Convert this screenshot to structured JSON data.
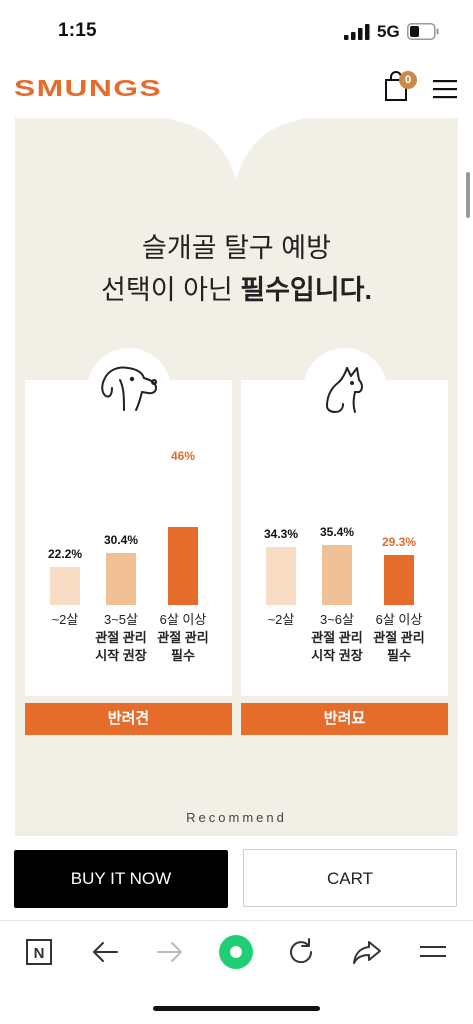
{
  "status_bar": {
    "time": "1:15",
    "network": "5G"
  },
  "header": {
    "brand": "SMUNGS",
    "cart_count": "0"
  },
  "content": {
    "headline_line1": "슬개골 탈구 예방",
    "headline_line2_plain": "선택이 아닌 ",
    "headline_line2_bold": "필수입니다.",
    "recommend_label": "Recommend",
    "dog": {
      "label": "반려견",
      "bars": [
        {
          "value": "22.2%",
          "axis_line1": "~2살",
          "axis_line2": "",
          "axis_line3": ""
        },
        {
          "value": "30.4%",
          "axis_line1": "3~5살",
          "axis_line2": "관절 관리",
          "axis_line3": "시작 권장"
        },
        {
          "value": "46%",
          "axis_line1": "6살 이상",
          "axis_line2": "관절 관리",
          "axis_line3": "필수"
        }
      ]
    },
    "cat": {
      "label": "반려묘",
      "bars": [
        {
          "value": "34.3%",
          "axis_line1": "~2살",
          "axis_line2": "",
          "axis_line3": ""
        },
        {
          "value": "35.4%",
          "axis_line1": "3~6살",
          "axis_line2": "관절 관리",
          "axis_line3": "시작 권장"
        },
        {
          "value": "29.3%",
          "axis_line1": "6살 이상",
          "axis_line2": "관절 관리",
          "axis_line3": "필수"
        }
      ]
    }
  },
  "chart_data": [
    {
      "type": "bar",
      "categories": [
        "~2살",
        "3~5살",
        "6살 이상"
      ],
      "values": [
        22.2,
        30.4,
        46
      ]
    },
    {
      "type": "bar",
      "categories": [
        "~2살",
        "3~6살",
        "6살 이상"
      ],
      "values": [
        34.3,
        35.4,
        29.3
      ]
    }
  ],
  "actions": {
    "buy_now": "BUY IT NOW",
    "cart": "CART"
  },
  "colors": {
    "accent_orange": "#e56c2a",
    "light_peach": "#f8dcc4",
    "mid_peach": "#f0c195",
    "panel_beige": "#f2efe6",
    "badge": "#c98a4a",
    "browser_green": "#1fce74"
  },
  "icons": [
    "cart-icon",
    "menu-icon",
    "dog-icon",
    "cat-icon",
    "n-icon",
    "back-arrow-icon",
    "forward-arrow-icon",
    "home-circle-icon",
    "reload-icon",
    "share-icon",
    "more-menu-icon"
  ]
}
